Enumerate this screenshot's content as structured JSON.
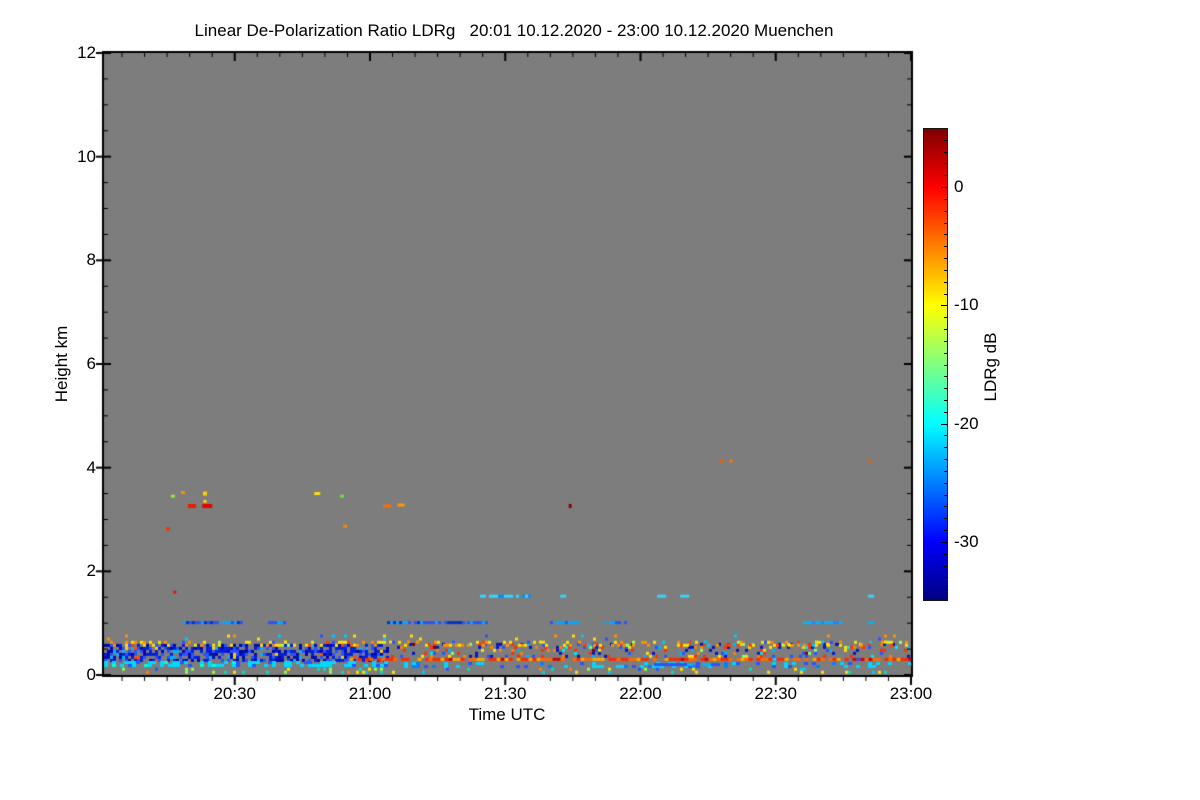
{
  "chart_data": {
    "type": "heatmap",
    "title": "Linear De-Polarization Ratio LDRg   20:01 10.12.2020 - 23:00 10.12.2020 Muenchen",
    "xlabel": "Time UTC",
    "ylabel": "Height km",
    "x_start": "20:01",
    "x_end": "23:00",
    "x_duration_min": 179,
    "x_tick_labels": [
      "20:30",
      "21:00",
      "21:30",
      "22:00",
      "22:30",
      "23:00"
    ],
    "x_tick_minutes": [
      29,
      59,
      89,
      119,
      149,
      179
    ],
    "x_minor_step_min": 5,
    "ylim": [
      0,
      12
    ],
    "y_ticks": [
      0,
      2,
      4,
      6,
      8,
      10,
      12
    ],
    "y_minor_step_km": 0.5,
    "no_data_color": "#7d7d7d",
    "grid": false,
    "seed": 7,
    "colorbar": {
      "label": "LDRg dB",
      "range_db": [
        5,
        -35
      ],
      "tick_values": [
        0,
        -10,
        -20,
        -30
      ],
      "minor_step_db": 1,
      "gradient": [
        [
          "#7f0000",
          0
        ],
        [
          "#ff0000",
          0.125
        ],
        [
          "#ff8000",
          0.25
        ],
        [
          "#ffff00",
          0.375
        ],
        [
          "#80ff80",
          0.5
        ],
        [
          "#00ffff",
          0.625
        ],
        [
          "#0000ff",
          0.875
        ],
        [
          "#000080",
          1
        ]
      ]
    },
    "features": {
      "bands": [
        {
          "name": "dense-blue-near-surface-left",
          "t": [
            0,
            63
          ],
          "h": [
            0.3,
            0.6
          ],
          "density": 0.68,
          "cell": [
            3,
            3
          ],
          "palette": [
            [
              "#0008a8",
              5
            ],
            [
              "#001ee0",
              5
            ],
            [
              "#2a52ff",
              3
            ],
            [
              "#00b4ff",
              1
            ],
            [
              "#ffd400",
              0.35
            ],
            [
              "#ff5000",
              0.3
            ]
          ]
        },
        {
          "name": "mixed-speckle-right",
          "t": [
            63,
            179
          ],
          "h": [
            0.36,
            0.62
          ],
          "density": 0.22,
          "cell": [
            3,
            3
          ],
          "palette": [
            [
              "#0018c0",
              3
            ],
            [
              "#2a52ff",
              2
            ],
            [
              "#00b4ff",
              1
            ],
            [
              "#ff3000",
              2
            ],
            [
              "#ff8000",
              1.3
            ],
            [
              "#ffe000",
              1.2
            ],
            [
              "#00e8ff",
              0.8
            ],
            [
              "#7f0000",
              0.3
            ],
            [
              "#80ff80",
              0.4
            ]
          ]
        },
        {
          "name": "yellow-speckle-top-line",
          "t": [
            0,
            179
          ],
          "h": [
            0.56,
            0.66
          ],
          "density": 0.3,
          "cell": [
            3,
            3
          ],
          "palette": [
            [
              "#ffe000",
              3
            ],
            [
              "#ff9000",
              2
            ],
            [
              "#ff4000",
              1
            ],
            [
              "#a0ff60",
              0.5
            ],
            [
              "#00c8ff",
              0.5
            ],
            [
              "#2a52ff",
              0.5
            ]
          ]
        },
        {
          "name": "sparse-speckle-above-band",
          "t": [
            0,
            179
          ],
          "h": [
            0.66,
            0.78
          ],
          "density": 0.045,
          "cell": [
            3,
            3
          ],
          "palette": [
            [
              "#ffe000",
              2
            ],
            [
              "#ff9000",
              1
            ],
            [
              "#00c8ff",
              1
            ],
            [
              "#2a52ff",
              1
            ]
          ]
        },
        {
          "name": "cyan-line-left",
          "t": [
            0,
            63
          ],
          "h": [
            0.21,
            0.27
          ],
          "density": 0.5,
          "cell": [
            4,
            3
          ],
          "palette": [
            [
              "#00d8ff",
              4
            ],
            [
              "#2a52ff",
              1
            ],
            [
              "#00ffd0",
              0.5
            ]
          ]
        },
        {
          "name": "cyan-line-right",
          "t": [
            63,
            179
          ],
          "h": [
            0.19,
            0.25
          ],
          "density": 0.26,
          "cell": [
            4,
            3
          ],
          "palette": [
            [
              "#00d8ff",
              3
            ],
            [
              "#2a52ff",
              1.5
            ],
            [
              "#0080ff",
              1
            ]
          ]
        },
        {
          "name": "red-line-onset",
          "t": [
            50,
            72
          ],
          "h": [
            0.28,
            0.33
          ],
          "density": 0.45,
          "cell": [
            4,
            3
          ],
          "palette": [
            [
              "#ff2800",
              3
            ],
            [
              "#ff6a00",
              2
            ],
            [
              "#ffa800",
              1
            ]
          ]
        },
        {
          "name": "red-line-continuous",
          "t": [
            72,
            179
          ],
          "h": [
            0.28,
            0.33
          ],
          "density": 0.85,
          "cell": [
            4,
            3
          ],
          "palette": [
            [
              "#ff2800",
              4
            ],
            [
              "#ff6a00",
              3
            ],
            [
              "#ffa800",
              2
            ],
            [
              "#d00000",
              1.2
            ],
            [
              "#00d8ff",
              0.25
            ],
            [
              "#2a52ff",
              0.25
            ]
          ]
        },
        {
          "name": "bottom-sparse-dots",
          "t": [
            0,
            179
          ],
          "h": [
            0.05,
            0.14
          ],
          "density": 0.1,
          "cell": [
            3,
            3
          ],
          "palette": [
            [
              "#ffe000",
              2
            ],
            [
              "#8aff50",
              2
            ],
            [
              "#00e0c0",
              1.5
            ],
            [
              "#00c8ff",
              1
            ],
            [
              "#ff8000",
              0.5
            ],
            [
              "#2a52ff",
              0.4
            ]
          ]
        }
      ],
      "segments": [
        {
          "name": "1km-layer",
          "h": 1.02,
          "t": [
            17.5,
            30.8
          ],
          "density": 0.95,
          "palette": [
            [
              "#0030cc",
              2
            ],
            [
              "#2a52ff",
              2
            ],
            [
              "#00a8ff",
              2
            ]
          ]
        },
        {
          "name": "1km-layer",
          "h": 1.02,
          "t": [
            36.4,
            40.2
          ],
          "density": 0.95,
          "palette": [
            [
              "#2a52ff",
              2
            ],
            [
              "#00a8ff",
              2
            ]
          ]
        },
        {
          "name": "1km-layer",
          "h": 1.02,
          "t": [
            62.8,
            79.6
          ],
          "density": 0.95,
          "palette": [
            [
              "#0030cc",
              3
            ],
            [
              "#2a52ff",
              2
            ],
            [
              "#00a8ff",
              2
            ]
          ]
        },
        {
          "name": "1km-layer",
          "h": 1.02,
          "t": [
            80.5,
            84.5
          ],
          "density": 0.9,
          "palette": [
            [
              "#2a52ff",
              2
            ],
            [
              "#00a8ff",
              1
            ]
          ]
        },
        {
          "name": "1km-layer",
          "h": 1.02,
          "t": [
            98.9,
            104.9
          ],
          "density": 0.9,
          "palette": [
            [
              "#00a8ff",
              3
            ],
            [
              "#2a52ff",
              1
            ]
          ]
        },
        {
          "name": "1km-layer",
          "h": 1.02,
          "t": [
            110.7,
            116.7
          ],
          "density": 0.9,
          "palette": [
            [
              "#00a8ff",
              3
            ],
            [
              "#2a52ff",
              1
            ]
          ]
        },
        {
          "name": "1km-layer",
          "h": 1.02,
          "t": [
            155.1,
            163.9
          ],
          "density": 0.9,
          "palette": [
            [
              "#00b4ff",
              3
            ],
            [
              "#2a80ff",
              1
            ]
          ]
        },
        {
          "name": "1km-layer",
          "h": 1.02,
          "t": [
            169.5,
            170.8
          ],
          "density": 1,
          "palette": [
            [
              "#00b4ff",
              1
            ]
          ]
        },
        {
          "name": "1.5km-layer",
          "h": 1.53,
          "t": [
            83.4,
            94.5
          ],
          "density": 0.85,
          "palette": [
            [
              "#30d8ff",
              3
            ],
            [
              "#0090ff",
              1
            ]
          ]
        },
        {
          "name": "1.5km-layer",
          "h": 1.53,
          "t": [
            101.2,
            102.5
          ],
          "density": 1,
          "palette": [
            [
              "#30d8ff",
              1
            ]
          ]
        },
        {
          "name": "1.5km-layer",
          "h": 1.53,
          "t": [
            122.7,
            124.4
          ],
          "density": 1,
          "palette": [
            [
              "#30d8ff",
              1
            ]
          ]
        },
        {
          "name": "1.5km-layer",
          "h": 1.53,
          "t": [
            127.8,
            129.3
          ],
          "density": 1,
          "palette": [
            [
              "#30d8ff",
              1
            ]
          ]
        },
        {
          "name": "1.5km-layer",
          "h": 1.53,
          "t": [
            169.5,
            170.8
          ],
          "density": 1,
          "palette": [
            [
              "#30d8ff",
              1
            ]
          ]
        },
        {
          "name": "blue-subline-right",
          "h": 0.21,
          "t": [
            122,
            136
          ],
          "density": 0.85,
          "palette": [
            [
              "#2a52ff",
              2
            ],
            [
              "#00b4ff",
              1
            ]
          ]
        }
      ],
      "points": [
        {
          "t": 15.3,
          "h": 3.45,
          "w": 4,
          "hh": 3,
          "color": "#8ce64b"
        },
        {
          "t": 17.5,
          "h": 3.52,
          "w": 4,
          "hh": 3,
          "color": "#ff9000"
        },
        {
          "t": 22.4,
          "h": 3.5,
          "w": 4,
          "hh": 4,
          "color": "#ffd400"
        },
        {
          "t": 22.4,
          "h": 3.35,
          "w": 3,
          "hh": 3,
          "color": "#ffd400"
        },
        {
          "t": 19.5,
          "h": 3.26,
          "w": 8,
          "hh": 4,
          "color": "#f01800"
        },
        {
          "t": 22.9,
          "h": 3.26,
          "w": 10,
          "hh": 4,
          "color": "#e80000"
        },
        {
          "t": 47.3,
          "h": 3.5,
          "w": 6,
          "hh": 3,
          "color": "#ffe000"
        },
        {
          "t": 52.8,
          "h": 3.45,
          "w": 4,
          "hh": 3,
          "color": "#6ede4e"
        },
        {
          "t": 62.8,
          "h": 3.26,
          "w": 8,
          "hh": 3,
          "color": "#ff7000"
        },
        {
          "t": 65.9,
          "h": 3.28,
          "w": 7,
          "hh": 3,
          "color": "#ff9800"
        },
        {
          "t": 14.2,
          "h": 2.82,
          "w": 4,
          "hh": 3,
          "color": "#ff3000"
        },
        {
          "t": 53.5,
          "h": 2.87,
          "w": 4,
          "hh": 3,
          "color": "#ff8400"
        },
        {
          "t": 103.4,
          "h": 3.26,
          "w": 3,
          "hh": 4,
          "color": "#8b0000"
        },
        {
          "t": 136.9,
          "h": 4.13,
          "w": 4,
          "hh": 3,
          "color": "#ff5a00"
        },
        {
          "t": 139.1,
          "h": 4.13,
          "w": 3,
          "hh": 3,
          "color": "#ff7800"
        },
        {
          "t": 169.9,
          "h": 4.13,
          "w": 3,
          "hh": 3,
          "color": "#ff5a00"
        },
        {
          "t": 15.7,
          "h": 1.6,
          "w": 3,
          "hh": 3,
          "color": "#cc2200"
        }
      ]
    }
  }
}
